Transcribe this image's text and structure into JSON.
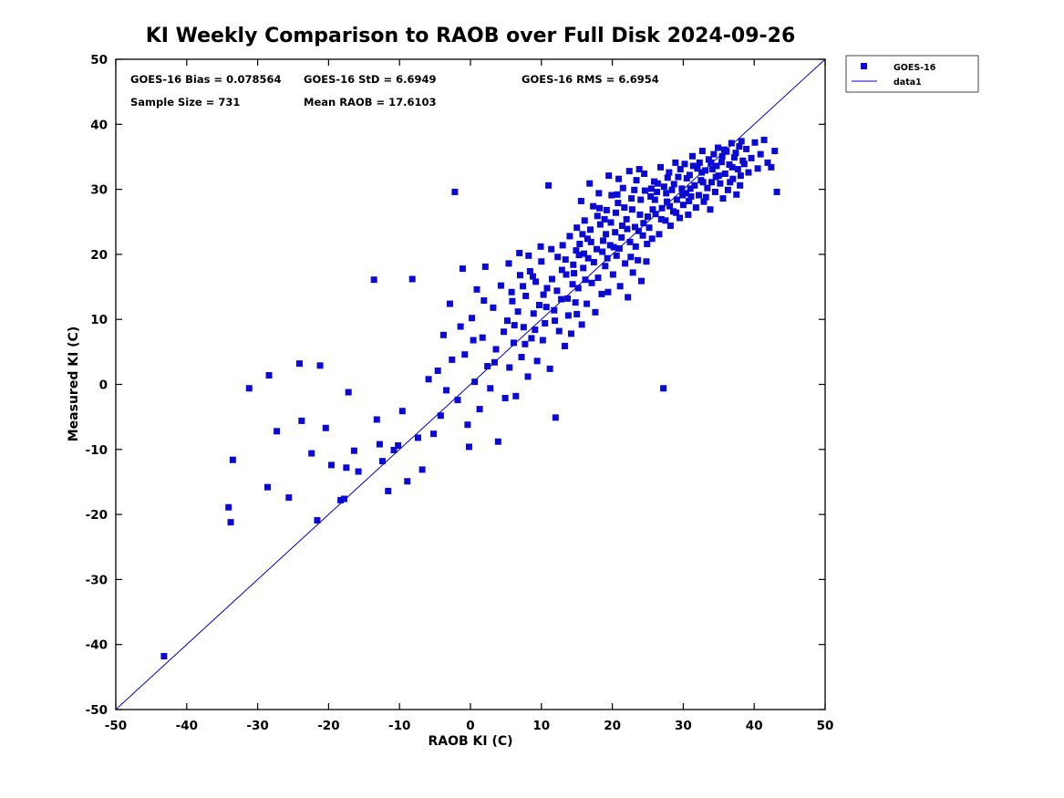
{
  "title": "KI Weekly Comparison to RAOB over Full Disk 2024-09-26",
  "annotations": {
    "bias": "GOES-16 Bias = 0.078564",
    "std": "GOES-16 StD = 6.6949",
    "rms": "GOES-16 RMS = 6.6954",
    "sample": "Sample Size = 731",
    "mean_raob": "Mean RAOB = 17.6103"
  },
  "legend": {
    "series1": "GOES-16",
    "series2": "data1"
  },
  "chart_data": {
    "type": "scatter",
    "title": "KI Weekly Comparison to RAOB over Full Disk 2024-09-26",
    "xlabel": "RAOB KI (C)",
    "ylabel": "Measured KI (C)",
    "xlim": [
      -50,
      50
    ],
    "ylim": [
      -50,
      50
    ],
    "xticks": [
      -50,
      -40,
      -30,
      -20,
      -10,
      0,
      10,
      20,
      30,
      40,
      50
    ],
    "yticks": [
      -50,
      -40,
      -30,
      -20,
      -10,
      0,
      10,
      20,
      30,
      40,
      50
    ],
    "grid": false,
    "legend_position": "outside-top-right",
    "marker_color": "#0a0ad2",
    "line_color": "#0000bb",
    "stats": {
      "bias": 0.078564,
      "std": 6.6949,
      "rms": 6.6954,
      "sample_size": 731,
      "mean_raob": 17.6103
    },
    "reference_line": {
      "name": "data1",
      "x": [
        -50,
        50
      ],
      "y": [
        -50,
        50
      ]
    },
    "series": [
      {
        "name": "GOES-16",
        "points": [
          [
            -43.2,
            -41.8
          ],
          [
            -34.1,
            -18.9
          ],
          [
            -33.8,
            -21.2
          ],
          [
            -33.5,
            -11.6
          ],
          [
            -31.2,
            -0.6
          ],
          [
            -28.6,
            -15.8
          ],
          [
            -28.4,
            1.4
          ],
          [
            -27.3,
            -7.2
          ],
          [
            -25.6,
            -17.4
          ],
          [
            -24.1,
            3.2
          ],
          [
            -23.8,
            -5.6
          ],
          [
            -22.4,
            -10.6
          ],
          [
            -21.6,
            -20.9
          ],
          [
            -21.2,
            2.9
          ],
          [
            -20.4,
            -6.7
          ],
          [
            -19.6,
            -12.4
          ],
          [
            -18.3,
            -17.8
          ],
          [
            -17.8,
            -17.6
          ],
          [
            -17.5,
            -12.8
          ],
          [
            -17.2,
            -1.2
          ],
          [
            -16.4,
            -10.2
          ],
          [
            -15.8,
            -13.4
          ],
          [
            -13.6,
            16.1
          ],
          [
            -13.2,
            -5.4
          ],
          [
            -12.8,
            -9.2
          ],
          [
            -12.4,
            -11.8
          ],
          [
            -11.6,
            -16.4
          ],
          [
            -10.8,
            -10.1
          ],
          [
            -10.2,
            -9.4
          ],
          [
            -9.6,
            -4.1
          ],
          [
            -8.9,
            -14.9
          ],
          [
            -8.2,
            16.2
          ],
          [
            -7.4,
            -8.2
          ],
          [
            -6.8,
            -13.1
          ],
          [
            -5.9,
            0.8
          ],
          [
            -5.2,
            -7.6
          ],
          [
            -4.6,
            2.1
          ],
          [
            -4.2,
            -4.8
          ],
          [
            -3.8,
            7.6
          ],
          [
            -3.4,
            -0.9
          ],
          [
            -2.9,
            12.4
          ],
          [
            -2.6,
            3.8
          ],
          [
            -2.2,
            29.6
          ],
          [
            -1.8,
            -2.4
          ],
          [
            -1.4,
            8.9
          ],
          [
            -1.1,
            17.8
          ],
          [
            -0.8,
            4.6
          ],
          [
            -0.4,
            -6.2
          ],
          [
            -0.2,
            -9.6
          ],
          [
            0.2,
            10.2
          ],
          [
            0.4,
            6.8
          ],
          [
            0.6,
            0.4
          ],
          [
            0.9,
            14.6
          ],
          [
            1.3,
            -3.8
          ],
          [
            1.7,
            7.2
          ],
          [
            1.9,
            12.9
          ],
          [
            2.1,
            18.1
          ],
          [
            2.4,
            2.8
          ],
          [
            2.8,
            -0.6
          ],
          [
            3.2,
            11.8
          ],
          [
            3.4,
            3.4
          ],
          [
            3.6,
            5.4
          ],
          [
            3.9,
            -8.8
          ],
          [
            4.3,
            15.2
          ],
          [
            4.7,
            8.1
          ],
          [
            4.9,
            -2.1
          ],
          [
            5.2,
            9.8
          ],
          [
            5.4,
            18.6
          ],
          [
            5.5,
            2.6
          ],
          [
            5.8,
            14.2
          ],
          [
            5.9,
            12.8
          ],
          [
            6.1,
            6.4
          ],
          [
            6.2,
            9.1
          ],
          [
            6.4,
            -1.8
          ],
          [
            6.7,
            11.2
          ],
          [
            6.9,
            20.2
          ],
          [
            7.0,
            16.8
          ],
          [
            7.2,
            4.2
          ],
          [
            7.4,
            15.1
          ],
          [
            7.5,
            8.8
          ],
          [
            7.7,
            6.2
          ],
          [
            7.8,
            13.6
          ],
          [
            8.1,
            1.2
          ],
          [
            8.2,
            19.8
          ],
          [
            8.4,
            17.4
          ],
          [
            8.6,
            7.1
          ],
          [
            8.8,
            16.6
          ],
          [
            8.9,
            10.9
          ],
          [
            9.1,
            8.4
          ],
          [
            9.2,
            15.8
          ],
          [
            9.4,
            3.6
          ],
          [
            9.7,
            12.2
          ],
          [
            9.9,
            21.2
          ],
          [
            10.0,
            18.9
          ],
          [
            10.2,
            6.8
          ],
          [
            10.3,
            13.8
          ],
          [
            10.5,
            9.4
          ],
          [
            10.7,
            11.9
          ],
          [
            10.8,
            14.8
          ],
          [
            11.0,
            30.6
          ],
          [
            11.2,
            2.4
          ],
          [
            11.4,
            20.8
          ],
          [
            11.5,
            16.2
          ],
          [
            11.8,
            11.4
          ],
          [
            11.9,
            9.8
          ],
          [
            12.0,
            -5.1
          ],
          [
            12.2,
            14.4
          ],
          [
            12.3,
            19.6
          ],
          [
            12.5,
            8.2
          ],
          [
            12.8,
            13.1
          ],
          [
            12.9,
            17.6
          ],
          [
            13.0,
            21.4
          ],
          [
            13.3,
            5.9
          ],
          [
            13.4,
            19.2
          ],
          [
            13.5,
            16.9
          ],
          [
            13.7,
            13.2
          ],
          [
            13.8,
            10.6
          ],
          [
            14.0,
            22.8
          ],
          [
            14.2,
            7.8
          ],
          [
            14.4,
            15.4
          ],
          [
            14.5,
            18.4
          ],
          [
            14.6,
            17.1
          ],
          [
            14.8,
            12.6
          ],
          [
            14.9,
            20.6
          ],
          [
            15.0,
            24.1
          ],
          [
            15.0,
            10.8
          ],
          [
            15.2,
            14.8
          ],
          [
            15.3,
            19.9
          ],
          [
            15.4,
            21.6
          ],
          [
            15.6,
            28.2
          ],
          [
            15.7,
            9.2
          ],
          [
            15.8,
            23.1
          ],
          [
            15.9,
            17.9
          ],
          [
            16.0,
            20.1
          ],
          [
            16.1,
            25.2
          ],
          [
            16.2,
            16.1
          ],
          [
            16.4,
            12.4
          ],
          [
            16.5,
            22.4
          ],
          [
            16.6,
            19.4
          ],
          [
            16.8,
            30.9
          ],
          [
            16.9,
            23.8
          ],
          [
            17.0,
            21.9
          ],
          [
            17.1,
            15.6
          ],
          [
            17.3,
            27.4
          ],
          [
            17.4,
            18.8
          ],
          [
            17.6,
            11.1
          ],
          [
            17.8,
            20.8
          ],
          [
            17.9,
            25.9
          ],
          [
            18.0,
            16.4
          ],
          [
            18.1,
            29.4
          ],
          [
            18.2,
            27.1
          ],
          [
            18.3,
            24.6
          ],
          [
            18.5,
            13.9
          ],
          [
            18.6,
            20.4
          ],
          [
            18.7,
            22.1
          ],
          [
            18.9,
            25.4
          ],
          [
            19.0,
            18.2
          ],
          [
            19.1,
            23.1
          ],
          [
            19.2,
            26.8
          ],
          [
            19.3,
            19.4
          ],
          [
            19.4,
            14.2
          ],
          [
            19.5,
            32.1
          ],
          [
            19.7,
            21.4
          ],
          [
            19.8,
            24.9
          ],
          [
            19.9,
            29.1
          ],
          [
            20.1,
            16.9
          ],
          [
            20.2,
            21.1
          ],
          [
            20.4,
            23.4
          ],
          [
            20.5,
            26.4
          ],
          [
            20.6,
            19.8
          ],
          [
            20.7,
            29.2
          ],
          [
            20.8,
            27.9
          ],
          [
            20.9,
            31.6
          ],
          [
            21.0,
            20.9
          ],
          [
            21.1,
            15.1
          ],
          [
            21.3,
            22.6
          ],
          [
            21.4,
            24.4
          ],
          [
            21.5,
            30.2
          ],
          [
            21.7,
            27.2
          ],
          [
            21.8,
            18.6
          ],
          [
            22.0,
            25.4
          ],
          [
            22.1,
            23.9
          ],
          [
            22.2,
            13.4
          ],
          [
            22.4,
            32.8
          ],
          [
            22.5,
            21.9
          ],
          [
            22.6,
            19.6
          ],
          [
            22.7,
            28.6
          ],
          [
            22.8,
            26.9
          ],
          [
            22.9,
            17.2
          ],
          [
            23.1,
            29.9
          ],
          [
            23.2,
            24.2
          ],
          [
            23.3,
            21.2
          ],
          [
            23.4,
            31.4
          ],
          [
            23.6,
            19.1
          ],
          [
            23.7,
            23.6
          ],
          [
            23.8,
            33.1
          ],
          [
            23.9,
            26.1
          ],
          [
            24.0,
            28.4
          ],
          [
            24.1,
            15.9
          ],
          [
            24.3,
            22.9
          ],
          [
            24.4,
            24.8
          ],
          [
            24.5,
            32.4
          ],
          [
            24.6,
            29.8
          ],
          [
            24.8,
            18.9
          ],
          [
            24.9,
            21.6
          ],
          [
            25.0,
            25.8
          ],
          [
            25.2,
            24.1
          ],
          [
            25.4,
            28.9
          ],
          [
            25.5,
            30.1
          ],
          [
            25.6,
            22.4
          ],
          [
            25.7,
            26.9
          ],
          [
            25.9,
            31.2
          ],
          [
            26.0,
            28.4
          ],
          [
            26.1,
            26.2
          ],
          [
            26.3,
            29.6
          ],
          [
            26.4,
            30.9
          ],
          [
            26.6,
            23.1
          ],
          [
            26.8,
            33.4
          ],
          [
            26.9,
            25.4
          ],
          [
            27.0,
            27.1
          ],
          [
            27.2,
            -0.6
          ],
          [
            27.3,
            30.4
          ],
          [
            27.5,
            25.2
          ],
          [
            27.6,
            29.4
          ],
          [
            27.7,
            28.1
          ],
          [
            27.8,
            31.8
          ],
          [
            28.0,
            32.6
          ],
          [
            28.1,
            27.4
          ],
          [
            28.2,
            24.4
          ],
          [
            28.4,
            29.9
          ],
          [
            28.6,
            26.6
          ],
          [
            28.7,
            30.8
          ],
          [
            28.9,
            34.1
          ],
          [
            29.0,
            26.4
          ],
          [
            29.1,
            28.4
          ],
          [
            29.3,
            31.9
          ],
          [
            29.5,
            25.6
          ],
          [
            29.6,
            33.1
          ],
          [
            29.8,
            30.1
          ],
          [
            29.9,
            29.1
          ],
          [
            30.0,
            27.6
          ],
          [
            30.2,
            33.9
          ],
          [
            30.4,
            29.4
          ],
          [
            30.5,
            31.7
          ],
          [
            30.7,
            26.1
          ],
          [
            30.8,
            28.2
          ],
          [
            30.9,
            32.2
          ],
          [
            31.0,
            30.1
          ],
          [
            31.1,
            28.9
          ],
          [
            31.3,
            35.1
          ],
          [
            31.4,
            33.6
          ],
          [
            31.6,
            30.6
          ],
          [
            31.8,
            27.2
          ],
          [
            32.0,
            33.2
          ],
          [
            32.2,
            29.1
          ],
          [
            32.3,
            34.1
          ],
          [
            32.5,
            31.4
          ],
          [
            32.6,
            32.6
          ],
          [
            32.7,
            35.9
          ],
          [
            32.8,
            31.1
          ],
          [
            32.9,
            28.1
          ],
          [
            33.1,
            32.9
          ],
          [
            33.2,
            28.8
          ],
          [
            33.4,
            30.2
          ],
          [
            33.6,
            34.6
          ],
          [
            33.8,
            26.9
          ],
          [
            33.9,
            34.1
          ],
          [
            34.0,
            31.1
          ],
          [
            34.1,
            33.1
          ],
          [
            34.3,
            35.4
          ],
          [
            34.5,
            29.6
          ],
          [
            34.6,
            31.9
          ],
          [
            34.7,
            33.6
          ],
          [
            34.9,
            36.4
          ],
          [
            35.0,
            32.1
          ],
          [
            35.2,
            30.9
          ],
          [
            35.4,
            34.2
          ],
          [
            35.5,
            35.1
          ],
          [
            35.6,
            28.6
          ],
          [
            35.8,
            36.1
          ],
          [
            35.9,
            32.4
          ],
          [
            36.1,
            35.8
          ],
          [
            36.3,
            29.9
          ],
          [
            36.5,
            33.8
          ],
          [
            36.6,
            31.1
          ],
          [
            36.8,
            37.1
          ],
          [
            36.9,
            33.4
          ],
          [
            37.0,
            31.6
          ],
          [
            37.2,
            34.9
          ],
          [
            37.4,
            35.6
          ],
          [
            37.5,
            29.2
          ],
          [
            37.7,
            33.1
          ],
          [
            37.9,
            36.6
          ],
          [
            38.0,
            30.6
          ],
          [
            38.1,
            32.1
          ],
          [
            38.2,
            37.4
          ],
          [
            38.4,
            34.4
          ],
          [
            38.6,
            33.9
          ],
          [
            38.9,
            36.2
          ],
          [
            39.2,
            32.6
          ],
          [
            39.6,
            34.8
          ],
          [
            40.1,
            37.2
          ],
          [
            40.5,
            33.2
          ],
          [
            40.9,
            35.4
          ],
          [
            41.4,
            37.6
          ],
          [
            41.9,
            34.1
          ],
          [
            42.4,
            33.4
          ],
          [
            42.9,
            35.9
          ],
          [
            43.2,
            29.6
          ]
        ]
      }
    ]
  }
}
